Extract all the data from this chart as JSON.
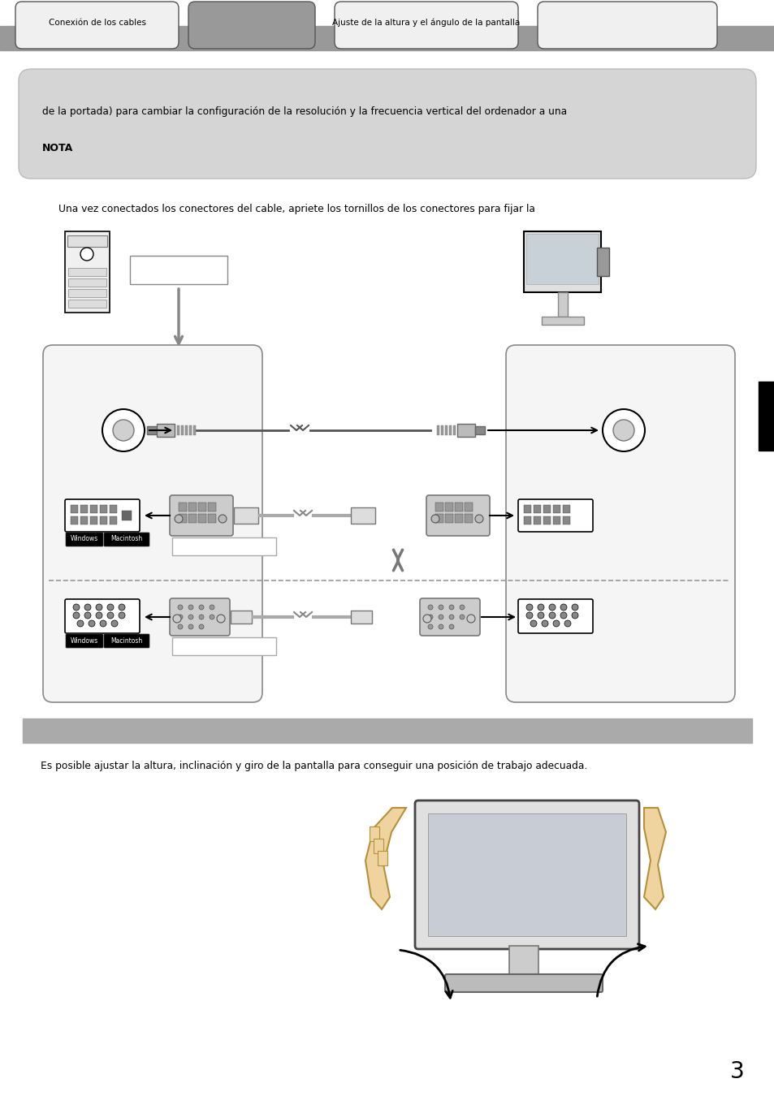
{
  "bg_color": "#ffffff",
  "tab_bar_color": "#999999",
  "note_box_color": "#d5d5d5",
  "note_text_line1": "de la portada) para cambiar la configuración de la resolución y la frecuencia vertical del ordenador a una",
  "nota_label": "NOTA",
  "caption_text": "Una vez conectados los conectores del cable, apriete los tornillos de los conectores para fijar la",
  "section2_bar_color": "#aaaaaa",
  "section2_body": "Es posible ajustar la altura, inclinación y giro de la pantalla para conseguir una posición de trabajo adecuada.",
  "page_number": "3",
  "tab_labels": [
    "Conexión de los cables",
    "",
    "Ajuste de la altura y el ángulo de la pantalla",
    ""
  ]
}
